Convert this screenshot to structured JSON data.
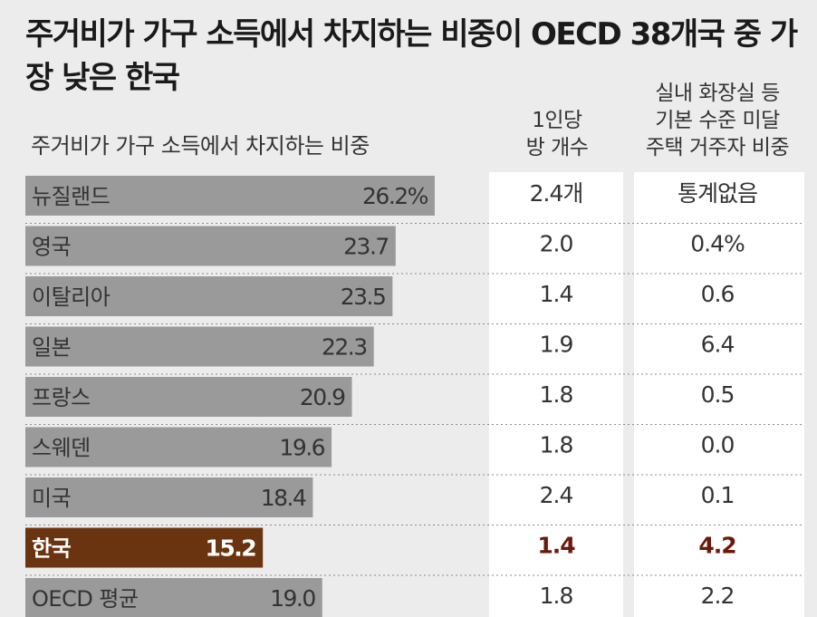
{
  "title": "주거비가 가구 소득에서 차지하는 비중이 OECD 38개국 중 가장 낮은 한국",
  "headers": {
    "share": "주거비가 가구 소득에서 차지하는 비중",
    "rooms_line1": "1인당",
    "rooms_line2": "방 개수",
    "facility_line1": "실내 화장실 등",
    "facility_line2": "기본 수준 미달",
    "facility_line3": "주택 거주자 비중"
  },
  "colors": {
    "bar": "#9a9a9a",
    "highlight_bar": "#6b3410",
    "highlight_text": "#6b1a0c",
    "background": "#ececec",
    "column_background": "#ffffff"
  },
  "chart_data": {
    "type": "bar",
    "orientation": "horizontal",
    "categories": [
      "뉴질랜드",
      "영국",
      "이탈리아",
      "일본",
      "프랑스",
      "스웨덴",
      "미국",
      "한국",
      "OECD 평균"
    ],
    "values": [
      26.2,
      23.7,
      23.5,
      22.3,
      20.9,
      19.6,
      18.4,
      15.2,
      19.0
    ],
    "value_labels": [
      "26.2%",
      "23.7",
      "23.5",
      "22.3",
      "20.9",
      "19.6",
      "18.4",
      "15.2",
      "19.0"
    ],
    "highlight": "한국",
    "rooms_per_person": [
      "2.4개",
      "2.0",
      "1.4",
      "1.9",
      "1.8",
      "1.8",
      "2.4",
      "1.4",
      "1.8"
    ],
    "substandard_housing_share": [
      "통계없음",
      "0.4%",
      "0.6",
      "6.4",
      "0.5",
      "0.0",
      "0.1",
      "4.2",
      "2.2"
    ]
  }
}
